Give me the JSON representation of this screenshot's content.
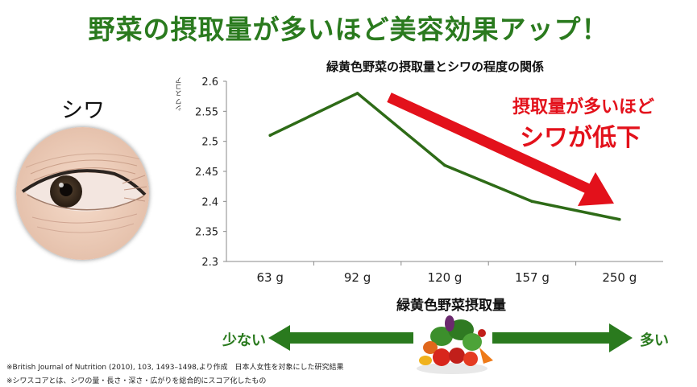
{
  "title": "野菜の摂取量が多いほど美容効果アップ！",
  "face_label": "シワ",
  "callout": {
    "line1": "摂取量が多いほど",
    "line2": "シワが低下"
  },
  "direction": {
    "less": "少ない",
    "more": "多い"
  },
  "footnotes": [
    "※British Journal of Nutrition (2010), 103, 1493–1498,より作成　日本人女性を対象にした研究結果",
    "※シワスコアとは、シワの量・長さ・深さ・広がりを総合的にスコア化したもの"
  ],
  "colors": {
    "accent": "#2a7a1e",
    "line": "#2e6b17",
    "highlight": "#e3111b"
  },
  "chart_data": {
    "type": "line",
    "title": "緑黄色野菜の摂取量とシワの程度の関係",
    "xlabel": "緑黄色野菜摂取量",
    "ylabel": "シワ スコア",
    "categories": [
      "63 g",
      "92 g",
      "120 g",
      "157 g",
      "250 g"
    ],
    "values": [
      2.51,
      2.58,
      2.46,
      2.4,
      2.37
    ],
    "ylim": [
      2.3,
      2.6
    ],
    "yticks": [
      "2.6",
      "2.55",
      "2.5",
      "2.45",
      "2.4",
      "2.35",
      "2.3"
    ],
    "grid": false,
    "legend": "none"
  }
}
